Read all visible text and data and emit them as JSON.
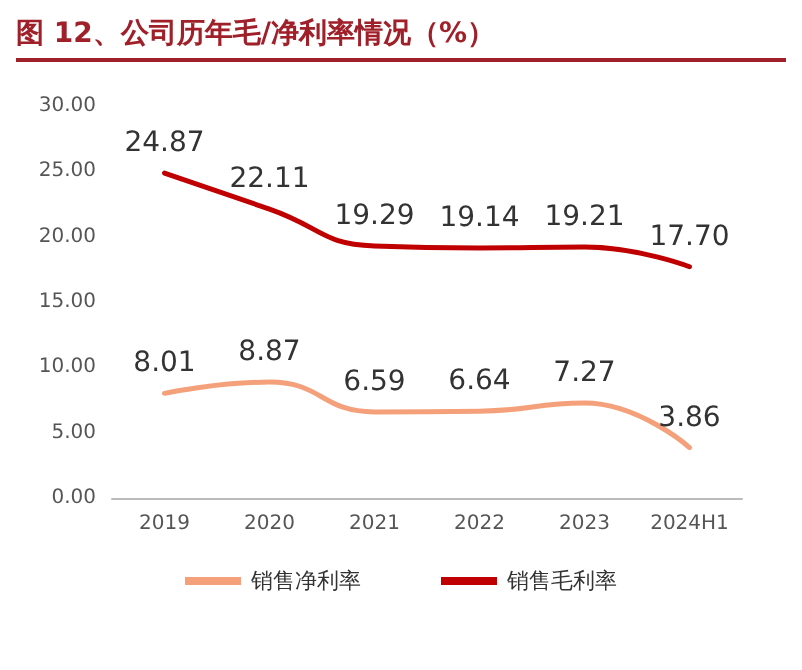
{
  "chart_data": {
    "type": "line",
    "title": "图 12、公司历年毛/净利率情况（%）",
    "categories": [
      "2019",
      "2020",
      "2021",
      "2022",
      "2023",
      "2024H1"
    ],
    "series": [
      {
        "name": "销售净利率",
        "color": "#f4a07a",
        "values": [
          8.01,
          8.87,
          6.59,
          6.64,
          7.27,
          3.86
        ]
      },
      {
        "name": "销售毛利率",
        "color": "#c00000",
        "values": [
          24.87,
          22.11,
          19.29,
          19.14,
          19.21,
          17.7
        ],
        "value_labels": [
          "24.87",
          "22.11",
          "19.29",
          "19.14",
          "19.21",
          "17.70"
        ]
      }
    ],
    "ylim": [
      0,
      30
    ],
    "yticks": [
      {
        "value": 0,
        "label": "0.00"
      },
      {
        "value": 5,
        "label": "5.00"
      },
      {
        "value": 10,
        "label": "10.00"
      },
      {
        "value": 15,
        "label": "15.00"
      },
      {
        "value": 20,
        "label": "20.00"
      },
      {
        "value": 25,
        "label": "25.00"
      },
      {
        "value": 30,
        "label": "30.00"
      }
    ],
    "data_labels": true,
    "legend": "bottom",
    "grid": false,
    "marker": "none",
    "line_style": "solid"
  }
}
